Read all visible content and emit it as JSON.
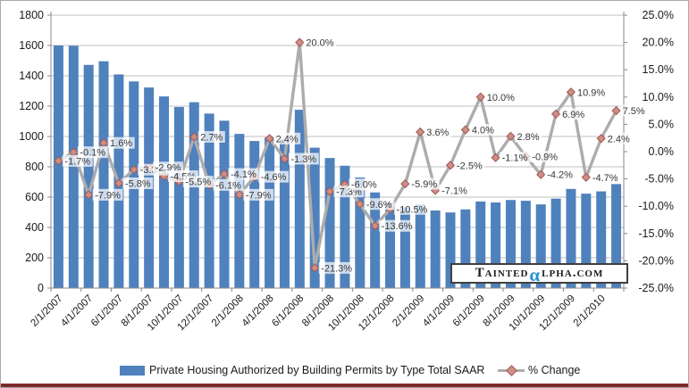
{
  "chart_data": {
    "type": "bar",
    "combo": "bar+line",
    "title": "",
    "x_tick_labels": [
      "2/1/2007",
      "4/1/2007",
      "6/1/2007",
      "8/1/2007",
      "10/1/2007",
      "12/1/2007",
      "2/1/2008",
      "4/1/2008",
      "6/1/2008",
      "8/1/2008",
      "10/1/2008",
      "12/1/2008",
      "2/1/2009",
      "4/1/2009",
      "6/1/2009",
      "8/1/2009",
      "10/1/2009",
      "12/1/2009",
      "2/1/2010"
    ],
    "label_every_n_bars": 2,
    "n_bars": 38,
    "series": [
      {
        "name": "Private Housing Authorized by Building Permits by Type Total  SAAR",
        "type": "bar",
        "axis": "left",
        "color": "#4F81BD",
        "values": [
          1600,
          1598,
          1472,
          1496,
          1409,
          1363,
          1323,
          1264,
          1194,
          1226,
          1151,
          1104,
          1017,
          970,
          993,
          980,
          1176,
          926,
          858,
          807,
          730,
          631,
          565,
          532,
          551,
          512,
          499,
          519,
          571,
          565,
          581,
          576,
          552,
          590,
          654,
          623,
          638,
          686
        ]
      },
      {
        "name": "% Change",
        "type": "line",
        "axis": "right",
        "line_color": "#ACACAC",
        "marker_fill": "#CE8E86",
        "marker_stroke": "#A35C55",
        "values": [
          -1.7,
          -0.1,
          -7.9,
          1.6,
          -5.8,
          -3.3,
          -2.9,
          -4.5,
          -5.5,
          2.7,
          -6.1,
          -4.1,
          -7.9,
          -4.6,
          2.4,
          -1.3,
          20.0,
          -21.3,
          -7.3,
          -6.0,
          -9.6,
          -13.6,
          -10.5,
          -5.9,
          3.6,
          -7.1,
          -2.5,
          4.0,
          10.0,
          -1.1,
          2.8,
          -0.9,
          -4.2,
          6.9,
          10.9,
          -4.7,
          2.4,
          7.5
        ],
        "data_labels": [
          "-1.7%",
          "-0.1%",
          "-7.9%",
          "1.6%",
          "-5.8%",
          "-3.3%",
          "-2.9%",
          "-4.5%",
          "-5.5%",
          "2.7%",
          "-6.1%",
          "-4.1%",
          "-7.9%",
          "-4.6%",
          "2.4%",
          "-1.3%",
          "20.0%",
          "-21.3%",
          "-7.3%",
          "-6.0%",
          "-9.6%",
          "-13.6%",
          "-10.5%",
          "-5.9%",
          "3.6%",
          "-7.1%",
          "-2.5%",
          "4.0%",
          "10.0%",
          "-1.1%",
          "2.8%",
          "-0.9%",
          "-4.2%",
          "6.9%",
          "10.9%",
          "-4.7%",
          "2.4%",
          "7.5%"
        ]
      }
    ],
    "left_axis": {
      "min": 0,
      "max": 1800,
      "step": 200,
      "tick_labels": [
        "1800",
        "1600",
        "1400",
        "1200",
        "1000",
        "800",
        "600",
        "400",
        "200",
        "0"
      ]
    },
    "right_axis": {
      "min": -25,
      "max": 25,
      "step": 5,
      "tick_labels": [
        "25.0%",
        "20.0%",
        "15.0%",
        "10.0%",
        "5.0%",
        "0.0%",
        "-5.0%",
        "-10.0%",
        "-15.0%",
        "-20.0%",
        "-25.0%"
      ]
    },
    "grid": "horizontal",
    "legend_position": "bottom",
    "colors": {
      "gridline": "#BFBFBF",
      "axis_line": "#8A8A8A",
      "axis_text": "#1a1a1a",
      "data_label_text": "#383838",
      "frame_bottom": "#7B2B2B"
    }
  },
  "legend": {
    "bar_label": "Private Housing Authorized by Building Permits by Type Total  SAAR",
    "line_label": "% Change"
  },
  "watermark": {
    "prefix": "Tainted",
    "alpha": "α",
    "suffix": "lpha.com",
    "alpha_color": "#2193D1"
  }
}
